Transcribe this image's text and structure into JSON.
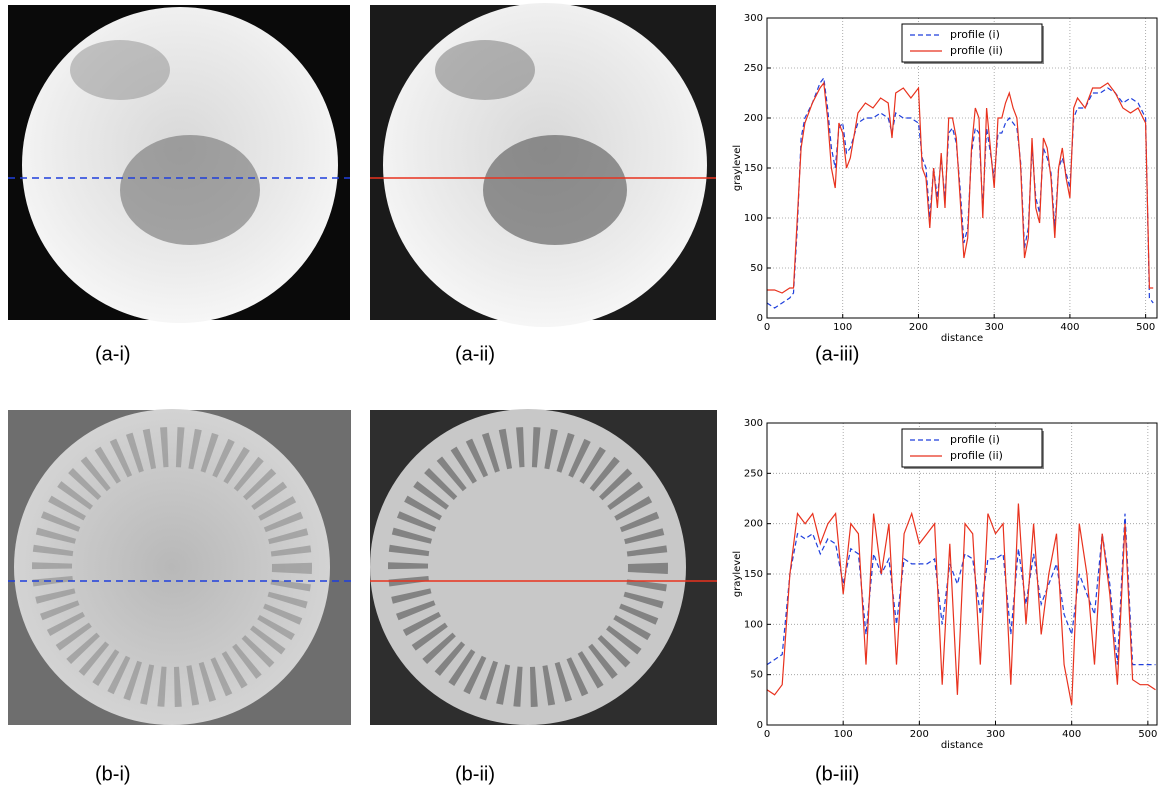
{
  "panel_labels": [
    "(a-i)",
    "(a-ii)",
    "(a-iii)",
    "(b-i)",
    "(b-ii)",
    "(b-iii)"
  ],
  "chart_data": [
    {
      "type": "line",
      "xlabel": "distance",
      "ylabel": "graylevel",
      "xlim": [
        0,
        515
      ],
      "ylim": [
        0,
        300
      ],
      "xticks": [
        0,
        100,
        200,
        300,
        400,
        500
      ],
      "yticks": [
        0,
        50,
        100,
        150,
        200,
        250,
        300
      ],
      "grid": true,
      "legend": "upper center",
      "x": [
        0,
        10,
        20,
        30,
        35,
        40,
        45,
        50,
        60,
        70,
        75,
        80,
        85,
        90,
        95,
        100,
        105,
        110,
        120,
        130,
        140,
        150,
        160,
        165,
        170,
        180,
        190,
        200,
        205,
        210,
        215,
        220,
        225,
        230,
        235,
        240,
        245,
        250,
        255,
        260,
        265,
        270,
        275,
        280,
        285,
        290,
        300,
        305,
        310,
        315,
        320,
        325,
        330,
        335,
        340,
        345,
        350,
        355,
        360,
        365,
        370,
        375,
        380,
        385,
        390,
        395,
        400,
        405,
        410,
        420,
        430,
        440,
        450,
        460,
        470,
        480,
        490,
        500,
        505,
        510
      ],
      "series": [
        {
          "name": "profile (i)",
          "color": "#1f3fdc",
          "dashed": true,
          "values": [
            15,
            10,
            15,
            20,
            25,
            90,
            180,
            200,
            215,
            235,
            240,
            210,
            170,
            150,
            190,
            195,
            165,
            170,
            195,
            200,
            200,
            205,
            200,
            185,
            205,
            200,
            200,
            195,
            160,
            150,
            100,
            150,
            120,
            160,
            120,
            185,
            190,
            175,
            130,
            75,
            90,
            165,
            190,
            185,
            110,
            190,
            140,
            185,
            185,
            195,
            200,
            195,
            190,
            155,
            70,
            90,
            170,
            120,
            105,
            170,
            160,
            145,
            90,
            150,
            160,
            145,
            130,
            200,
            210,
            210,
            225,
            225,
            230,
            225,
            215,
            220,
            215,
            200,
            20,
            15
          ]
        },
        {
          "name": "profile (ii)",
          "color": "#e8321e",
          "dashed": false,
          "values": [
            28,
            28,
            25,
            30,
            30,
            100,
            170,
            195,
            215,
            230,
            235,
            200,
            150,
            130,
            195,
            185,
            150,
            160,
            205,
            215,
            210,
            220,
            215,
            180,
            225,
            230,
            220,
            230,
            150,
            140,
            90,
            150,
            110,
            165,
            110,
            200,
            200,
            180,
            120,
            60,
            80,
            170,
            210,
            200,
            100,
            210,
            130,
            200,
            200,
            215,
            225,
            210,
            200,
            150,
            60,
            80,
            180,
            110,
            95,
            180,
            170,
            140,
            80,
            150,
            170,
            140,
            120,
            210,
            220,
            210,
            230,
            230,
            235,
            225,
            210,
            205,
            210,
            195,
            30,
            30
          ]
        }
      ]
    },
    {
      "type": "line",
      "xlabel": "distance",
      "ylabel": "graylevel",
      "xlim": [
        0,
        512
      ],
      "ylim": [
        0,
        300
      ],
      "xticks": [
        0,
        100,
        200,
        300,
        400,
        500
      ],
      "yticks": [
        0,
        50,
        100,
        150,
        200,
        250,
        300
      ],
      "grid": true,
      "legend": "upper center",
      "x": [
        0,
        10,
        20,
        30,
        40,
        50,
        60,
        70,
        80,
        90,
        100,
        110,
        120,
        130,
        140,
        150,
        160,
        170,
        180,
        190,
        200,
        210,
        220,
        230,
        240,
        250,
        260,
        270,
        280,
        290,
        300,
        310,
        320,
        330,
        340,
        350,
        360,
        370,
        380,
        390,
        400,
        410,
        420,
        430,
        440,
        450,
        460,
        470,
        480,
        490,
        500,
        510
      ],
      "series": [
        {
          "name": "profile (i)",
          "color": "#1f3fdc",
          "dashed": true,
          "values": [
            60,
            65,
            70,
            150,
            190,
            185,
            190,
            170,
            185,
            180,
            140,
            175,
            170,
            90,
            170,
            150,
            165,
            100,
            165,
            160,
            160,
            160,
            165,
            100,
            160,
            140,
            170,
            165,
            110,
            165,
            165,
            170,
            90,
            175,
            120,
            170,
            120,
            140,
            160,
            110,
            90,
            150,
            130,
            110,
            190,
            140,
            60,
            210,
            60,
            60,
            60,
            60
          ]
        },
        {
          "name": "profile (ii)",
          "color": "#e8321e",
          "dashed": false,
          "values": [
            35,
            30,
            40,
            150,
            210,
            200,
            210,
            180,
            200,
            210,
            130,
            200,
            190,
            60,
            210,
            150,
            200,
            60,
            190,
            210,
            180,
            190,
            200,
            40,
            180,
            30,
            200,
            190,
            60,
            210,
            190,
            200,
            40,
            220,
            100,
            200,
            90,
            150,
            190,
            60,
            20,
            200,
            150,
            60,
            190,
            130,
            40,
            200,
            45,
            40,
            40,
            35
          ]
        }
      ]
    }
  ]
}
